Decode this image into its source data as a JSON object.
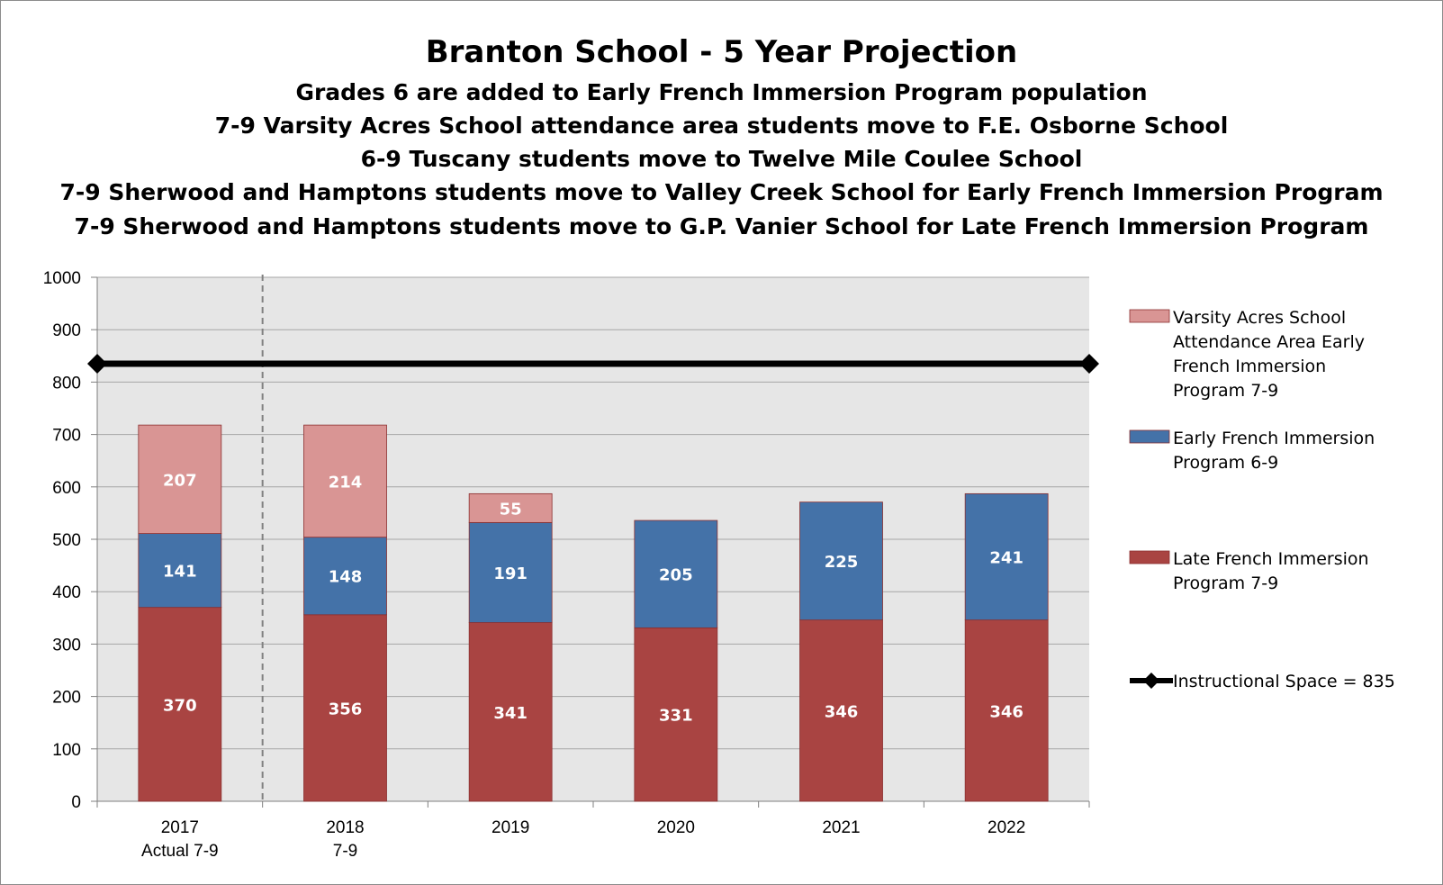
{
  "chart_data": {
    "type": "bar",
    "stacked": true,
    "title": "Branton School - 5 Year Projection",
    "subtitles": [
      "Grades 6 are added to Early French Immersion Program population",
      "7-9 Varsity Acres School attendance area students move to F.E. Osborne School",
      "6-9 Tuscany students move to Twelve Mile Coulee School",
      "7-9 Sherwood and Hamptons students move to Valley Creek School for Early French Immersion Program",
      "7-9 Sherwood and Hamptons students move to G.P. Vanier School for Late French Immersion Program"
    ],
    "categories": [
      [
        "2017",
        "Actual 7-9"
      ],
      [
        "2018",
        "7-9"
      ],
      [
        "2019"
      ],
      [
        "2020"
      ],
      [
        "2021"
      ],
      [
        "2022"
      ]
    ],
    "series": [
      {
        "name": "Late French Immersion Program 7-9",
        "legend_lines": [
          "Late French Immersion",
          "Program 7-9"
        ],
        "color": "#a94442",
        "values": [
          370,
          356,
          341,
          331,
          346,
          346
        ]
      },
      {
        "name": "Early French Immersion Program 6-9",
        "legend_lines": [
          "Early French Immersion",
          "Program 6-9"
        ],
        "color": "#4472a8",
        "values": [
          141,
          148,
          191,
          205,
          225,
          241
        ]
      },
      {
        "name": "Varsity Acres School Attendance Area Early French Immersion Program 7-9",
        "legend_lines": [
          "Varsity Acres School",
          "Attendance Area Early",
          "French Immersion",
          "Program 7-9"
        ],
        "color": "#d99594",
        "values": [
          207,
          214,
          55,
          null,
          null,
          null
        ]
      }
    ],
    "reference_line": {
      "name": "Instructional Space = 835",
      "value": 835,
      "color": "#000000"
    },
    "ylim": [
      0,
      1000
    ],
    "yticks": [
      0,
      100,
      200,
      300,
      400,
      500,
      600,
      700,
      800,
      900,
      1000
    ],
    "grid": true,
    "legend_position": "right",
    "divider_after_category": 1,
    "colors": {
      "plot_bg": "#e6e6e6",
      "grid": "#a6a6a6",
      "label": "#ffffff"
    }
  }
}
